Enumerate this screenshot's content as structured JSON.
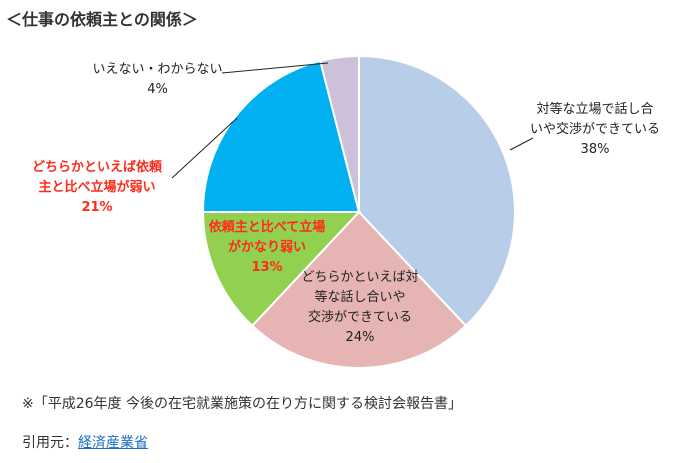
{
  "chart_data": {
    "type": "pie",
    "title": "＜仕事の依頼主との関係＞",
    "slices": [
      {
        "label": "対等な立場で話し合いや交渉ができている",
        "value": 38,
        "percent": "38%",
        "color": "#b7cde8"
      },
      {
        "label": "どちらかといえば対等な話し合いや交渉ができている",
        "value": 24,
        "percent": "24%",
        "color": "#e6b4b3"
      },
      {
        "label": "依頼主と比べて立場がかなり弱い",
        "value": 13,
        "percent": "13%",
        "color": "#92d050"
      },
      {
        "label": "どちらかといえば依頼主と比べ立場が弱い",
        "value": 21,
        "percent": "21%",
        "color": "#00b0f0"
      },
      {
        "label": "いえない・わからない",
        "value": 4,
        "percent": "4%",
        "color": "#ccc0da"
      }
    ],
    "label_lines": [
      [
        "対等な立場で話し合",
        "いや交渉ができている",
        "38%"
      ],
      [
        "どちらかといえば対",
        "等な話し合いや",
        "交渉ができている",
        "24%"
      ],
      [
        "依頼主と比べて立場",
        "がかなり弱い",
        "13%"
      ],
      [
        "どちらかといえば依頼",
        "主と比べ立場が弱い",
        "21%"
      ],
      [
        "いえない・わからない",
        "4%"
      ]
    ]
  },
  "footnote": "※「平成26年度 今後の在宅就業施策の在り方に関する検討会報告書」",
  "source": {
    "prefix": "引用元：",
    "link_text": "経済産業省"
  }
}
